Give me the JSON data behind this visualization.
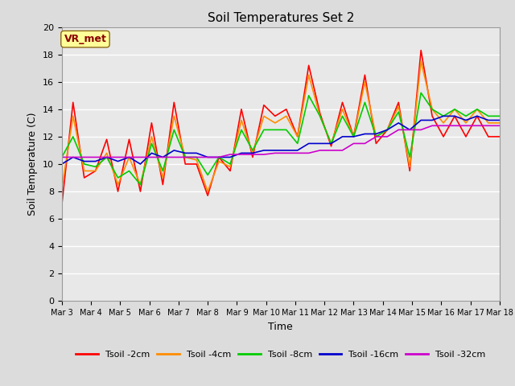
{
  "title": "Soil Temperatures Set 2",
  "xlabel": "Time",
  "ylabel": "Soil Temperature (C)",
  "ylim": [
    0,
    20
  ],
  "annotation_text": "VR_met",
  "annotation_color": "#8B0000",
  "annotation_bg": "#FFFF99",
  "x_tick_labels": [
    "Mar 3",
    "Mar 4",
    "Mar 5",
    "Mar 6",
    "Mar 7",
    "Mar 8",
    "Mar 9",
    "Mar 10",
    "Mar 11",
    "Mar 12",
    "Mar 13",
    "Mar 14",
    "Mar 15",
    "Mar 16",
    "Mar 17",
    "Mar 18"
  ],
  "series_names": [
    "Tsoil -2cm",
    "Tsoil -4cm",
    "Tsoil -8cm",
    "Tsoil -16cm",
    "Tsoil -32cm"
  ],
  "series_colors": [
    "#FF0000",
    "#FF8C00",
    "#00CC00",
    "#0000CC",
    "#CC00CC"
  ],
  "tsoil_2cm": [
    7.0,
    14.5,
    9.0,
    9.5,
    11.8,
    8.0,
    11.8,
    8.0,
    13.0,
    8.5,
    14.5,
    10.0,
    10.0,
    7.7,
    10.5,
    9.5,
    14.0,
    10.5,
    14.3,
    13.5,
    14.0,
    12.0,
    17.2,
    13.7,
    11.3,
    14.5,
    12.0,
    16.5,
    11.5,
    12.5,
    14.5,
    9.5,
    18.3,
    13.5,
    12.0,
    13.5,
    12.0,
    13.5,
    12.0,
    12.0
  ],
  "tsoil_4cm": [
    8.2,
    13.5,
    9.5,
    9.5,
    10.8,
    8.5,
    10.5,
    8.5,
    12.0,
    9.0,
    13.5,
    10.5,
    10.3,
    8.0,
    10.2,
    9.8,
    13.2,
    10.8,
    13.5,
    13.0,
    13.5,
    12.0,
    16.5,
    13.5,
    11.5,
    14.0,
    12.0,
    16.0,
    12.0,
    12.5,
    14.2,
    9.8,
    17.5,
    14.0,
    13.0,
    14.0,
    13.0,
    14.0,
    13.0,
    13.0
  ],
  "tsoil_8cm": [
    10.5,
    12.0,
    10.0,
    9.8,
    10.5,
    9.0,
    9.5,
    8.5,
    11.5,
    9.5,
    12.5,
    10.5,
    10.5,
    9.2,
    10.5,
    10.0,
    12.5,
    11.0,
    12.5,
    12.5,
    12.5,
    11.5,
    15.0,
    13.5,
    11.5,
    13.5,
    12.0,
    14.5,
    12.0,
    12.5,
    13.8,
    10.5,
    15.2,
    14.0,
    13.5,
    14.0,
    13.5,
    14.0,
    13.5,
    13.5
  ],
  "tsoil_16cm": [
    10.0,
    10.5,
    10.2,
    10.2,
    10.5,
    10.2,
    10.5,
    10.0,
    10.8,
    10.5,
    11.0,
    10.8,
    10.8,
    10.5,
    10.5,
    10.5,
    10.8,
    10.8,
    11.0,
    11.0,
    11.0,
    11.0,
    11.5,
    11.5,
    11.5,
    12.0,
    12.0,
    12.2,
    12.2,
    12.5,
    13.0,
    12.5,
    13.2,
    13.2,
    13.5,
    13.5,
    13.2,
    13.5,
    13.2,
    13.2
  ],
  "tsoil_32cm": [
    10.5,
    10.5,
    10.5,
    10.5,
    10.5,
    10.5,
    10.5,
    10.5,
    10.5,
    10.5,
    10.5,
    10.5,
    10.5,
    10.5,
    10.5,
    10.7,
    10.7,
    10.7,
    10.7,
    10.8,
    10.8,
    10.8,
    10.8,
    11.0,
    11.0,
    11.0,
    11.5,
    11.5,
    12.0,
    12.0,
    12.5,
    12.5,
    12.5,
    12.8,
    12.8,
    12.8,
    12.8,
    12.8,
    12.8,
    12.8
  ]
}
